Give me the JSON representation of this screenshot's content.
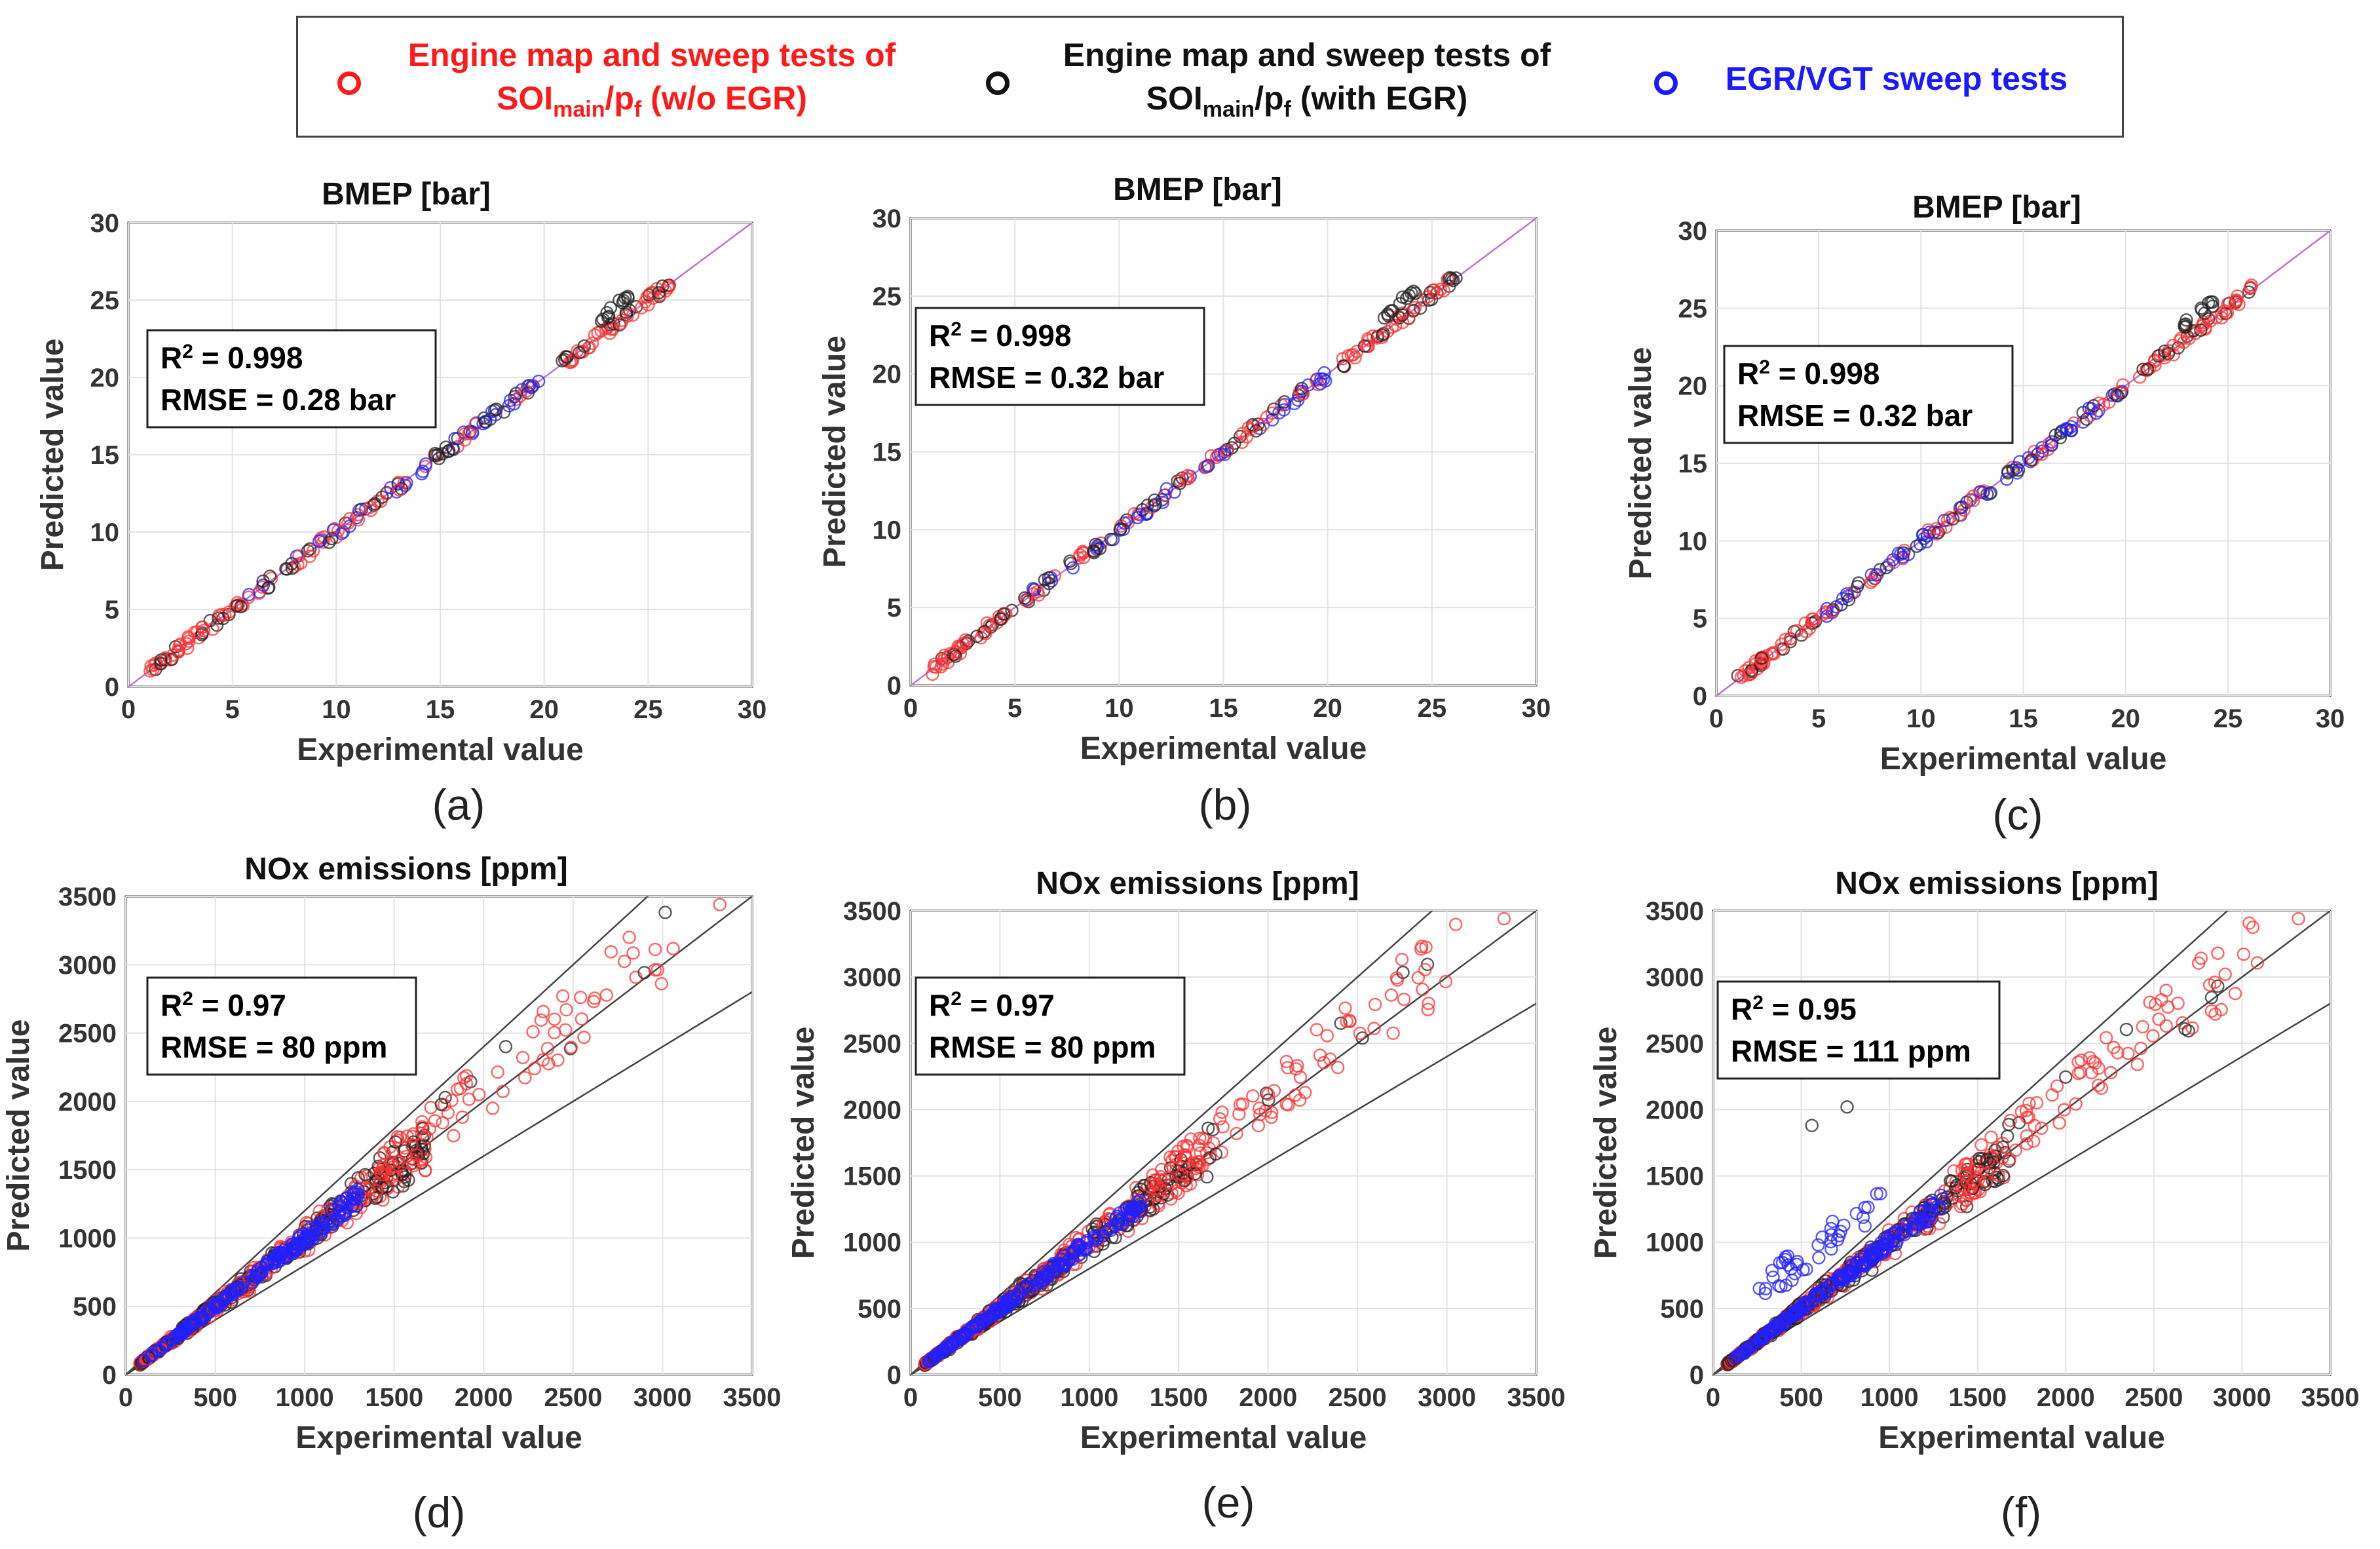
{
  "legend": {
    "items": [
      {
        "name": "red",
        "line1": "Engine map and sweep tests of",
        "line2_main": "SOI",
        "line2_sub": "main",
        "line2_mid": "/p",
        "line2_sub2": "f",
        "line2_tail": " (w/o EGR)",
        "color": "#ff1a1a"
      },
      {
        "name": "black",
        "line1": "Engine map and sweep tests of",
        "line2_main": "SOI",
        "line2_sub": "main",
        "line2_mid": "/p",
        "line2_sub2": "f",
        "line2_tail": " (with EGR)",
        "color": "#111111"
      },
      {
        "name": "blue",
        "line1": "EGR/VGT sweep tests",
        "color": "#1a1aff"
      }
    ]
  },
  "chart_data": [
    {
      "id": "a",
      "type": "scatter",
      "title": "BMEP [bar]",
      "xlabel": "Experimental value",
      "ylabel": "Predicted value",
      "xlim": [
        0,
        30
      ],
      "ylim": [
        0,
        30
      ],
      "xticks": [
        0,
        5,
        10,
        15,
        20,
        25,
        30
      ],
      "yticks": [
        0,
        5,
        10,
        15,
        20,
        25,
        30
      ],
      "stat_r2_label": "R",
      "stat_r2_sup": "2",
      "stat_r2_value": " = 0.998",
      "stat_rmse": "RMSE = 0.28 bar",
      "panel_label": "(a)",
      "kind": "bmep",
      "seed": 11
    },
    {
      "id": "b",
      "type": "scatter",
      "title": "BMEP [bar]",
      "xlabel": "Experimental value",
      "ylabel": "Predicted value",
      "xlim": [
        0,
        30
      ],
      "ylim": [
        0,
        30
      ],
      "xticks": [
        0,
        5,
        10,
        15,
        20,
        25,
        30
      ],
      "yticks": [
        0,
        5,
        10,
        15,
        20,
        25,
        30
      ],
      "stat_r2_label": "R",
      "stat_r2_sup": "2",
      "stat_r2_value": " = 0.998",
      "stat_rmse": "RMSE = 0.32 bar",
      "panel_label": "(b)",
      "kind": "bmep",
      "seed": 23
    },
    {
      "id": "c",
      "type": "scatter",
      "title": "BMEP [bar]",
      "xlabel": "Experimental value",
      "ylabel": "Predicted value",
      "xlim": [
        0,
        30
      ],
      "ylim": [
        0,
        30
      ],
      "xticks": [
        0,
        5,
        10,
        15,
        20,
        25,
        30
      ],
      "yticks": [
        0,
        5,
        10,
        15,
        20,
        25,
        30
      ],
      "stat_r2_label": "R",
      "stat_r2_sup": "2",
      "stat_r2_value": " = 0.998",
      "stat_rmse": "RMSE = 0.32 bar",
      "panel_label": "(c)",
      "kind": "bmep",
      "seed": 37
    },
    {
      "id": "d",
      "type": "scatter",
      "title": "NOx emissions [ppm]",
      "xlabel": "Experimental value",
      "ylabel": "Predicted value",
      "xlim": [
        0,
        3500
      ],
      "ylim": [
        0,
        3500
      ],
      "xticks": [
        0,
        500,
        1000,
        1500,
        2000,
        2500,
        3000,
        3500
      ],
      "yticks": [
        0,
        500,
        1000,
        1500,
        2000,
        2500,
        3000,
        3500
      ],
      "stat_r2_label": "R",
      "stat_r2_sup": "2",
      "stat_r2_value": " = 0.97",
      "stat_rmse": "RMSE = 80 ppm",
      "panel_label": "(d)",
      "kind": "nox",
      "seed": 41
    },
    {
      "id": "e",
      "type": "scatter",
      "title": "NOx emissions [ppm]",
      "xlabel": "Experimental value",
      "ylabel": "Predicted value",
      "xlim": [
        0,
        3500
      ],
      "ylim": [
        0,
        3500
      ],
      "xticks": [
        0,
        500,
        1000,
        1500,
        2000,
        2500,
        3000,
        3500
      ],
      "yticks": [
        0,
        500,
        1000,
        1500,
        2000,
        2500,
        3000,
        3500
      ],
      "stat_r2_label": "R",
      "stat_r2_sup": "2",
      "stat_r2_value": " = 0.97",
      "stat_rmse": "RMSE = 80 ppm",
      "panel_label": "(e)",
      "kind": "nox",
      "seed": 53
    },
    {
      "id": "f",
      "type": "scatter",
      "title": "NOx emissions [ppm]",
      "xlabel": "Experimental value",
      "ylabel": "Predicted value",
      "xlim": [
        0,
        3500
      ],
      "ylim": [
        0,
        3500
      ],
      "xticks": [
        0,
        500,
        1000,
        1500,
        2000,
        2500,
        3000,
        3500
      ],
      "yticks": [
        0,
        500,
        1000,
        1500,
        2000,
        2500,
        3000,
        3500
      ],
      "stat_r2_label": "R",
      "stat_r2_sup": "2",
      "stat_r2_value": " = 0.95",
      "stat_rmse": "RMSE = 111 ppm",
      "panel_label": "(f)",
      "kind": "nox",
      "seed": 67
    }
  ]
}
